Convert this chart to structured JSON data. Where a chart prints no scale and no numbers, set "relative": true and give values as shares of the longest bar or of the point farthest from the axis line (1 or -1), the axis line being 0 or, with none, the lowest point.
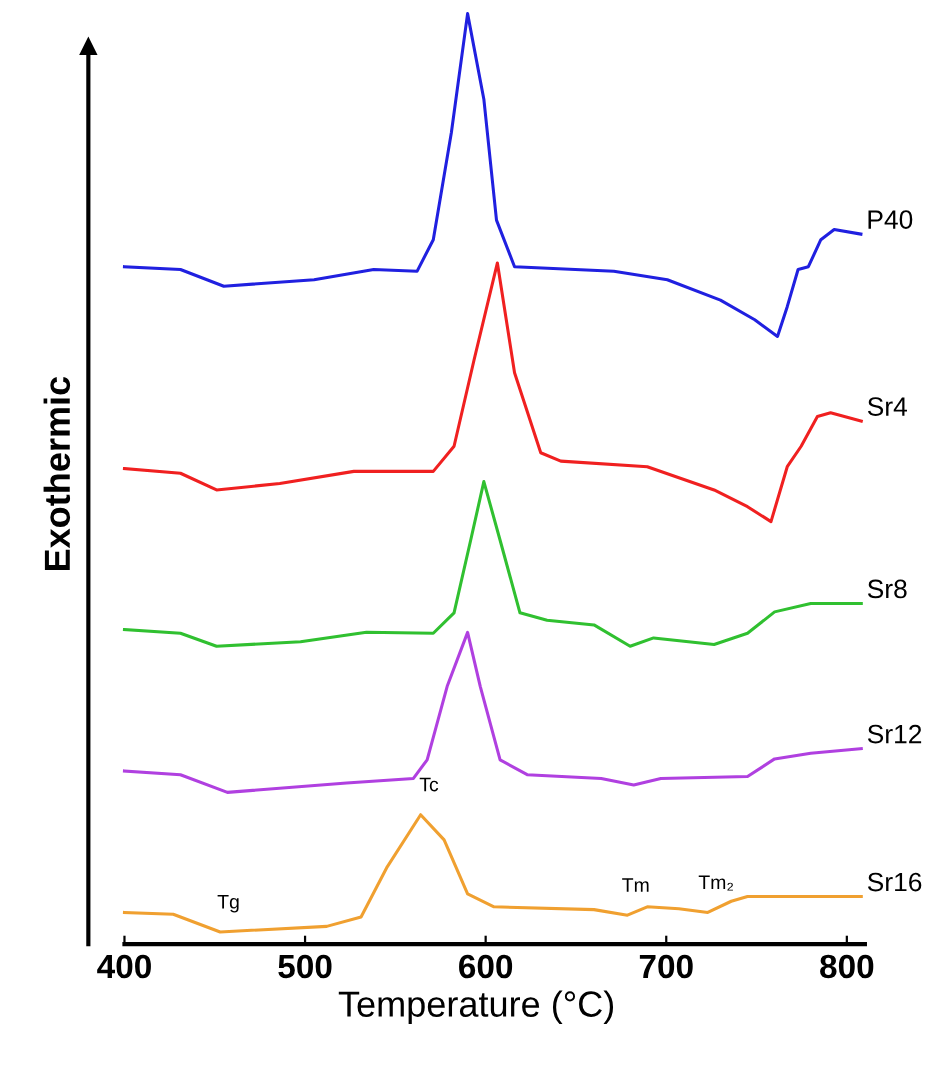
{
  "chart_data": {
    "type": "line",
    "relative": true,
    "xlabel": "Temperature (°C)",
    "ylabel": "Exothermic",
    "xlim": [
      380,
      810
    ],
    "xticks": [
      400,
      500,
      600,
      700,
      800
    ],
    "tick_labels": "x",
    "grid": false,
    "legend": false,
    "marker": "none",
    "line_style": "solid",
    "series": [
      {
        "name": "P40",
        "color": "#2020e0",
        "x": [
          400,
          431,
          455,
          505,
          538,
          562,
          571,
          581,
          590,
          599,
          606,
          616,
          671,
          700.6,
          730,
          749,
          761.6,
          767,
          773,
          778.7,
          785.6,
          793,
          807.8
        ],
        "values": [
          0.728,
          0.725,
          0.707,
          0.714,
          0.725,
          0.723,
          0.757,
          0.872,
          1.0,
          0.908,
          0.778,
          0.728,
          0.723,
          0.714,
          0.692,
          0.671,
          0.653,
          0.685,
          0.725,
          0.728,
          0.757,
          0.768,
          0.763
        ]
      },
      {
        "name": "Sr4",
        "color": "#f02020",
        "x": [
          400,
          431,
          451,
          486,
          527,
          571,
          582.5,
          593.6,
          606.5,
          616,
          630.5,
          641.6,
          689.5,
          726.5,
          745,
          758,
          767,
          774.7,
          783.7,
          791,
          808
        ],
        "values": [
          0.511,
          0.506,
          0.488,
          0.495,
          0.508,
          0.508,
          0.535,
          0.628,
          0.732,
          0.614,
          0.528,
          0.519,
          0.513,
          0.488,
          0.47,
          0.454,
          0.513,
          0.535,
          0.567,
          0.571,
          0.562
        ]
      },
      {
        "name": "Sr8",
        "color": "#30c030",
        "x": [
          400,
          431,
          451,
          497.5,
          534,
          571,
          582.5,
          591.7,
          599,
          608,
          619,
          634,
          660,
          680,
          693,
          726.5,
          745,
          760,
          780,
          808
        ],
        "values": [
          0.338,
          0.334,
          0.32,
          0.325,
          0.335,
          0.334,
          0.356,
          0.434,
          0.497,
          0.434,
          0.356,
          0.348,
          0.343,
          0.32,
          0.329,
          0.322,
          0.334,
          0.357,
          0.366,
          0.366
        ]
      },
      {
        "name": "Sr12",
        "color": "#b040e0",
        "x": [
          400,
          431,
          457,
          523,
          560,
          567.6,
          578.7,
          590,
          597,
          608,
          623,
          664,
          682,
          697,
          745,
          760,
          780,
          808
        ],
        "values": [
          0.186,
          0.182,
          0.163,
          0.173,
          0.178,
          0.198,
          0.277,
          0.335,
          0.277,
          0.198,
          0.182,
          0.178,
          0.171,
          0.178,
          0.18,
          0.199,
          0.205,
          0.21
        ]
      },
      {
        "name": "Sr16",
        "color": "#f0a030",
        "x": [
          400,
          427,
          453,
          512,
          531,
          545.5,
          564,
          577,
          590,
          604.6,
          660,
          678.5,
          689.5,
          707,
          723,
          736,
          745,
          808
        ],
        "values": [
          0.034,
          0.032,
          0.013,
          0.019,
          0.029,
          0.083,
          0.139,
          0.112,
          0.054,
          0.04,
          0.037,
          0.031,
          0.04,
          0.038,
          0.034,
          0.046,
          0.051,
          0.051
        ]
      }
    ],
    "annotations": [
      {
        "text": "Tg",
        "x": 453,
        "y": 0.013
      },
      {
        "text": "Tc",
        "x": 564,
        "y": 0.139
      },
      {
        "text": "Tm",
        "x": 678.5,
        "y": 0.031
      },
      {
        "text": "Tm₂",
        "x": 723,
        "y": 0.034
      }
    ]
  }
}
